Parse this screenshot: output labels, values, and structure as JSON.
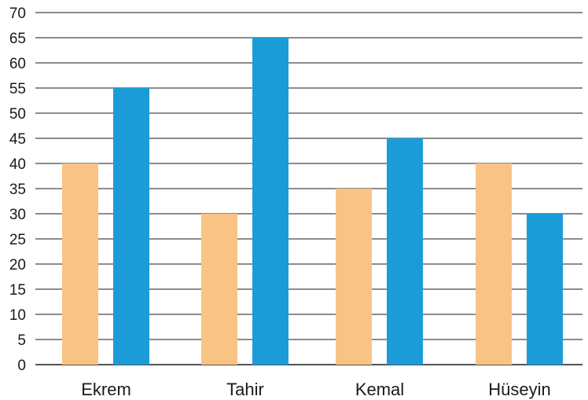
{
  "chart_data": {
    "type": "bar",
    "title": "",
    "xlabel": "",
    "ylabel": "",
    "categories": [
      "Ekrem",
      "Tahir",
      "Kemal",
      "Hüseyin"
    ],
    "series": [
      {
        "values": [
          40,
          30,
          35,
          40
        ],
        "color": "#F8C384"
      },
      {
        "values": [
          55,
          65,
          45,
          30
        ],
        "color": "#1B9CD8"
      }
    ],
    "ylim": [
      0,
      70
    ],
    "yticks": [
      0,
      5,
      10,
      15,
      20,
      25,
      30,
      35,
      40,
      45,
      50,
      55,
      60,
      65,
      70
    ],
    "grid": true,
    "legend": "none"
  }
}
